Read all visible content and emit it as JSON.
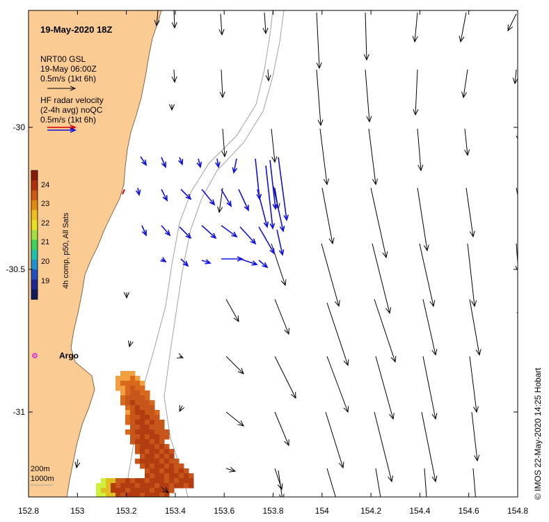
{
  "map": {
    "title": "19-May-2020 18Z",
    "legend_model": {
      "name": "NRT00 GSL",
      "time": "19-May 06:00Z",
      "scale": "0.5m/s (1kt 6h)"
    },
    "legend_radar": {
      "line1": "HF radar velocity",
      "line2": "(2-4h avg) noQC",
      "scale": "0.5m/s (1kt 6h)"
    },
    "colorbar": {
      "label": "4h comp, p50, All Sats",
      "ticks": [
        "24",
        "23",
        "22",
        "21",
        "20",
        "19"
      ]
    },
    "argo_label": "Argo",
    "isobath_labels": [
      "200m",
      "1000m"
    ],
    "credit": "© IMOS 22-May-2020 14:25 Hobart",
    "x_ticks": [
      "152.8",
      "153",
      "153.2",
      "153.4",
      "153.6",
      "153.8",
      "154",
      "154.2",
      "154.4",
      "154.6",
      "154.8"
    ],
    "y_ticks": [
      "-30",
      "-30.5",
      "-31"
    ],
    "colors": {
      "land": "#fbcb94",
      "model_arrow": "#000000",
      "radar_arrow": "#1010e0",
      "argo": "#e020e0",
      "isobath": "#a0a0a0"
    }
  }
}
